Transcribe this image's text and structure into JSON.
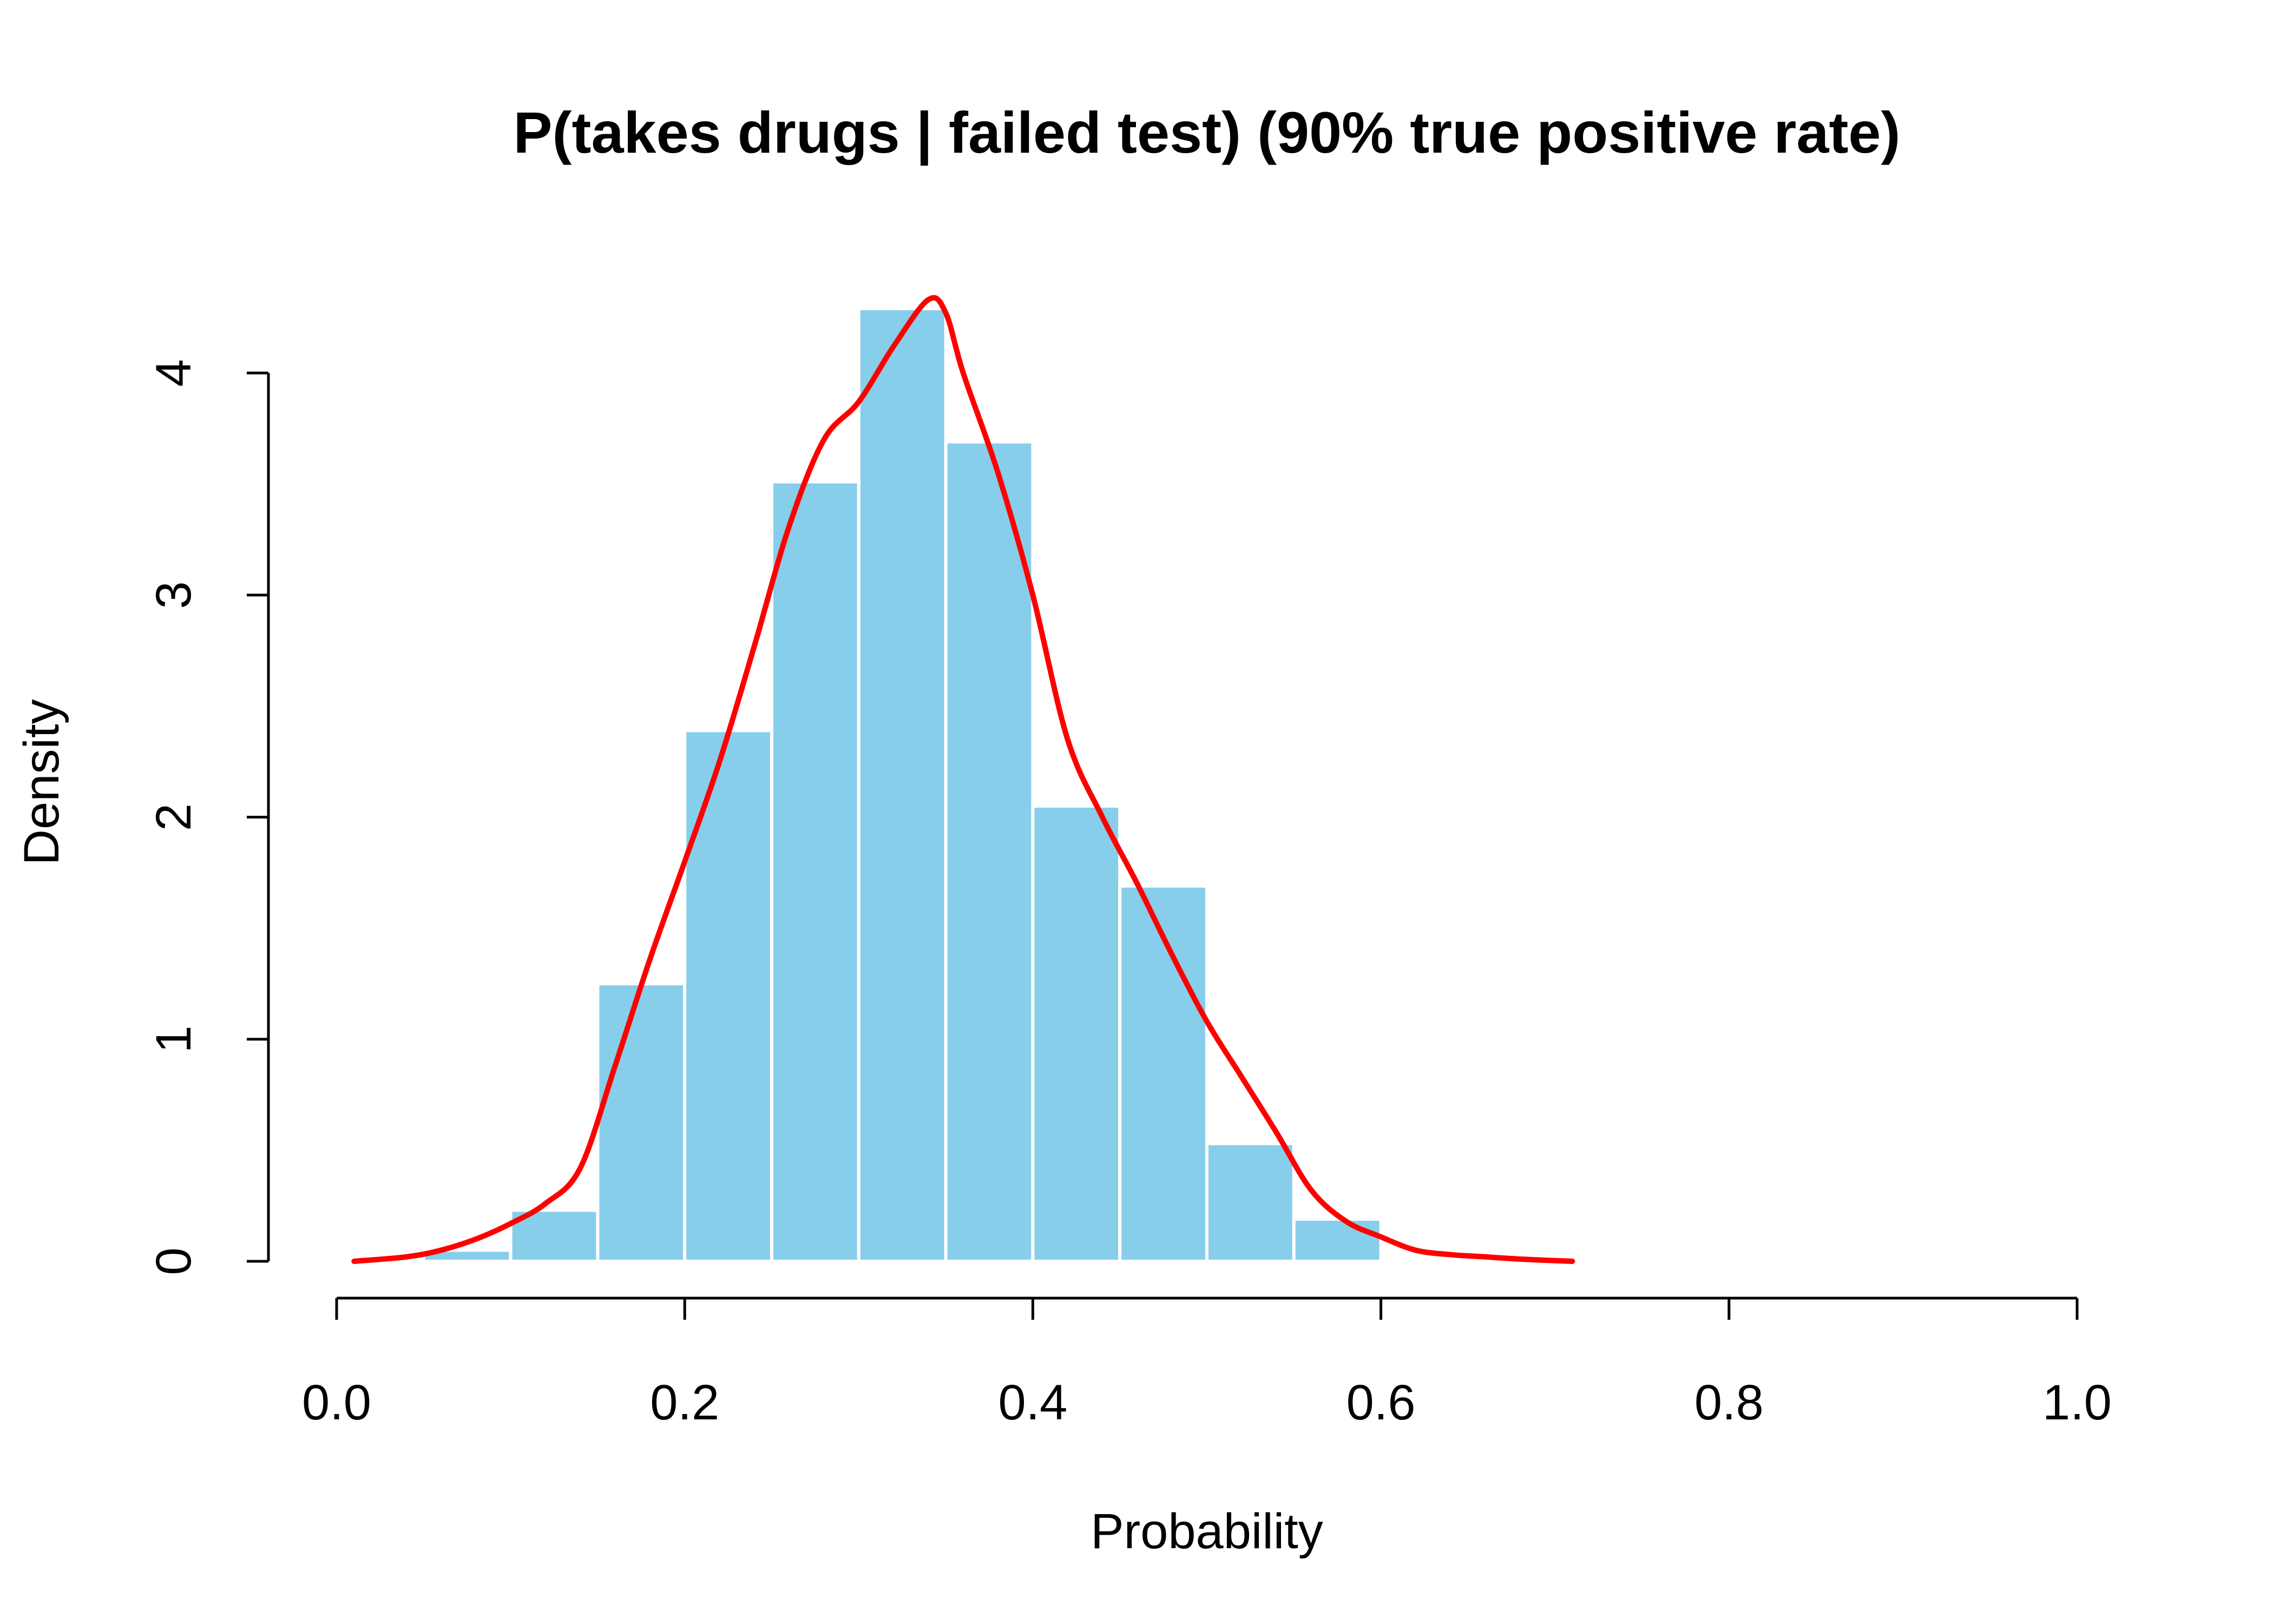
{
  "chart_data": {
    "type": "bar",
    "title": "P(takes drugs | failed test) (90% true positive rate)",
    "xlabel": "Probability",
    "ylabel": "Density",
    "xlim": [
      0,
      1
    ],
    "ylim": [
      0,
      4.3
    ],
    "x_ticks": [
      "0.0",
      "0.2",
      "0.4",
      "0.6",
      "0.8",
      "1.0"
    ],
    "y_ticks": [
      "0",
      "1",
      "2",
      "3",
      "4"
    ],
    "grid": false,
    "legend": "none",
    "bins": [
      {
        "x0": 0.05,
        "x1": 0.1,
        "density": 0.05
      },
      {
        "x0": 0.1,
        "x1": 0.15,
        "density": 0.23
      },
      {
        "x0": 0.15,
        "x1": 0.2,
        "density": 1.25
      },
      {
        "x0": 0.2,
        "x1": 0.25,
        "density": 2.39
      },
      {
        "x0": 0.25,
        "x1": 0.3,
        "density": 3.51
      },
      {
        "x0": 0.3,
        "x1": 0.35,
        "density": 4.29
      },
      {
        "x0": 0.35,
        "x1": 0.4,
        "density": 3.69
      },
      {
        "x0": 0.4,
        "x1": 0.45,
        "density": 2.05
      },
      {
        "x0": 0.45,
        "x1": 0.5,
        "density": 1.69
      },
      {
        "x0": 0.5,
        "x1": 0.55,
        "density": 0.53
      },
      {
        "x0": 0.55,
        "x1": 0.6,
        "density": 0.19
      }
    ],
    "density_curve": {
      "x": [
        0.01,
        0.04,
        0.06,
        0.08,
        0.1,
        0.12,
        0.14,
        0.16,
        0.18,
        0.2,
        0.22,
        0.24,
        0.26,
        0.28,
        0.3,
        0.32,
        0.34,
        0.35,
        0.36,
        0.38,
        0.4,
        0.42,
        0.44,
        0.46,
        0.48,
        0.5,
        0.52,
        0.54,
        0.56,
        0.58,
        0.6,
        0.62,
        0.64,
        0.66,
        0.68,
        0.71
      ],
      "y": [
        0.0,
        0.02,
        0.05,
        0.1,
        0.17,
        0.26,
        0.42,
        0.88,
        1.36,
        1.8,
        2.25,
        2.77,
        3.31,
        3.7,
        3.87,
        4.12,
        4.33,
        4.27,
        4.0,
        3.55,
        3.0,
        2.35,
        2.0,
        1.7,
        1.38,
        1.08,
        0.83,
        0.58,
        0.32,
        0.18,
        0.11,
        0.05,
        0.03,
        0.02,
        0.01,
        0.0
      ]
    },
    "colors": {
      "bar_fill": "#87ceeb",
      "bar_border": "#ffffff",
      "curve": "#ff0000",
      "axis": "#000000"
    }
  }
}
